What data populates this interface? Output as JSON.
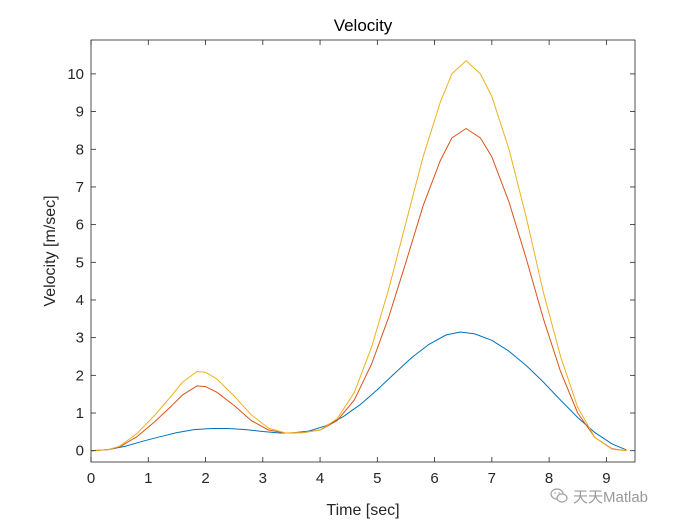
{
  "chart_data": {
    "type": "line",
    "title": "Velocity",
    "xlabel": "Time [sec]",
    "ylabel": "Velocity [m/sec]",
    "xlim": [
      0,
      9.5
    ],
    "ylim": [
      -0.3,
      10.9
    ],
    "xticks": [
      0,
      1,
      2,
      3,
      4,
      5,
      6,
      7,
      8,
      9
    ],
    "yticks": [
      0,
      1,
      2,
      3,
      4,
      5,
      6,
      7,
      8,
      9,
      10
    ],
    "grid": false,
    "legend": "none",
    "series": [
      {
        "color": "#0072BD",
        "points": [
          [
            0,
            0
          ],
          [
            0.3,
            0.03
          ],
          [
            0.6,
            0.12
          ],
          [
            0.9,
            0.25
          ],
          [
            1.2,
            0.37
          ],
          [
            1.5,
            0.48
          ],
          [
            1.8,
            0.56
          ],
          [
            2.1,
            0.59
          ],
          [
            2.4,
            0.59
          ],
          [
            2.7,
            0.56
          ],
          [
            3.0,
            0.51
          ],
          [
            3.3,
            0.47
          ],
          [
            3.5,
            0.47
          ],
          [
            3.8,
            0.52
          ],
          [
            4.1,
            0.66
          ],
          [
            4.4,
            0.9
          ],
          [
            4.7,
            1.22
          ],
          [
            5.0,
            1.62
          ],
          [
            5.3,
            2.05
          ],
          [
            5.6,
            2.47
          ],
          [
            5.9,
            2.82
          ],
          [
            6.2,
            3.07
          ],
          [
            6.45,
            3.15
          ],
          [
            6.7,
            3.1
          ],
          [
            7.0,
            2.93
          ],
          [
            7.3,
            2.64
          ],
          [
            7.6,
            2.26
          ],
          [
            7.9,
            1.82
          ],
          [
            8.2,
            1.34
          ],
          [
            8.5,
            0.88
          ],
          [
            8.8,
            0.48
          ],
          [
            9.1,
            0.18
          ],
          [
            9.35,
            0.02
          ]
        ]
      },
      {
        "color": "#D95319",
        "points": [
          [
            0,
            0
          ],
          [
            0.3,
            0.03
          ],
          [
            0.5,
            0.1
          ],
          [
            0.8,
            0.37
          ],
          [
            1.1,
            0.75
          ],
          [
            1.4,
            1.18
          ],
          [
            1.6,
            1.48
          ],
          [
            1.85,
            1.72
          ],
          [
            2.0,
            1.7
          ],
          [
            2.2,
            1.55
          ],
          [
            2.5,
            1.2
          ],
          [
            2.8,
            0.8
          ],
          [
            3.1,
            0.55
          ],
          [
            3.4,
            0.47
          ],
          [
            3.7,
            0.48
          ],
          [
            4.0,
            0.55
          ],
          [
            4.3,
            0.8
          ],
          [
            4.6,
            1.35
          ],
          [
            4.9,
            2.3
          ],
          [
            5.2,
            3.55
          ],
          [
            5.5,
            5.0
          ],
          [
            5.8,
            6.5
          ],
          [
            6.1,
            7.7
          ],
          [
            6.3,
            8.3
          ],
          [
            6.55,
            8.55
          ],
          [
            6.8,
            8.3
          ],
          [
            7.0,
            7.8
          ],
          [
            7.3,
            6.6
          ],
          [
            7.6,
            5.1
          ],
          [
            7.9,
            3.5
          ],
          [
            8.2,
            2.1
          ],
          [
            8.5,
            1.0
          ],
          [
            8.8,
            0.35
          ],
          [
            9.1,
            0.05
          ],
          [
            9.35,
            0
          ]
        ]
      },
      {
        "color": "#EDB120",
        "points": [
          [
            0,
            0
          ],
          [
            0.3,
            0.03
          ],
          [
            0.5,
            0.12
          ],
          [
            0.8,
            0.45
          ],
          [
            1.1,
            0.92
          ],
          [
            1.4,
            1.45
          ],
          [
            1.6,
            1.82
          ],
          [
            1.85,
            2.1
          ],
          [
            2.0,
            2.08
          ],
          [
            2.2,
            1.9
          ],
          [
            2.5,
            1.45
          ],
          [
            2.8,
            0.95
          ],
          [
            3.1,
            0.6
          ],
          [
            3.4,
            0.47
          ],
          [
            3.7,
            0.48
          ],
          [
            4.0,
            0.55
          ],
          [
            4.3,
            0.85
          ],
          [
            4.6,
            1.55
          ],
          [
            4.9,
            2.75
          ],
          [
            5.2,
            4.3
          ],
          [
            5.5,
            6.05
          ],
          [
            5.8,
            7.8
          ],
          [
            6.1,
            9.25
          ],
          [
            6.3,
            10.0
          ],
          [
            6.55,
            10.35
          ],
          [
            6.8,
            10.0
          ],
          [
            7.0,
            9.4
          ],
          [
            7.3,
            8.0
          ],
          [
            7.6,
            6.2
          ],
          [
            7.9,
            4.2
          ],
          [
            8.2,
            2.5
          ],
          [
            8.5,
            1.15
          ],
          [
            8.8,
            0.35
          ],
          [
            9.1,
            0.04
          ],
          [
            9.35,
            0
          ]
        ]
      }
    ]
  },
  "watermark": {
    "text": "天天Matlab",
    "icon": "wechat-icon"
  }
}
